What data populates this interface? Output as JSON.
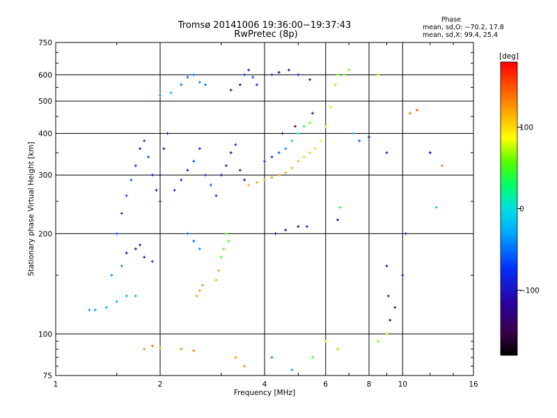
{
  "chart_data": {
    "type": "scatter",
    "title": "Tromsø 20141006 19:36:00−19:37:43",
    "subtitle": "RwPretec (8p)",
    "xlabel": "Frequency [MHz]",
    "ylabel": "Stationary phase Virtual Height [km]",
    "x_scale": "log",
    "y_scale": "log",
    "xlim": [
      1,
      16
    ],
    "ylim": [
      75,
      750
    ],
    "x_ticks": [
      1,
      2,
      4,
      6,
      8,
      10,
      16
    ],
    "x_tick_labels": [
      "1",
      "2",
      "4",
      "6",
      "8",
      "10",
      "16"
    ],
    "y_ticks": [
      75,
      100,
      200,
      300,
      400,
      500,
      600,
      750
    ],
    "y_tick_labels": [
      "75",
      "100",
      "200",
      "300",
      "400",
      "500",
      "600",
      "750"
    ],
    "grid": true,
    "stats": {
      "title": "Phase",
      "line_o": "mean, sd,O: −70.2, 17.8",
      "line_x": "mean, sd,X:  99.4, 25.4"
    },
    "colorbar": {
      "label": "[deg]",
      "min": -180,
      "max": 180,
      "ticks": [
        100,
        0,
        -100
      ],
      "tick_labels": [
        "100",
        "0",
        "−100"
      ]
    },
    "points": [
      [
        1.25,
        118,
        -45
      ],
      [
        1.3,
        118,
        -40
      ],
      [
        1.4,
        120,
        -35
      ],
      [
        1.5,
        125,
        -30
      ],
      [
        1.6,
        130,
        -35
      ],
      [
        1.7,
        130,
        -30
      ],
      [
        1.45,
        150,
        -40
      ],
      [
        1.55,
        160,
        -45
      ],
      [
        1.6,
        175,
        -110
      ],
      [
        1.7,
        180,
        -130
      ],
      [
        1.75,
        185,
        -120
      ],
      [
        1.8,
        170,
        -100
      ],
      [
        1.9,
        165,
        -90
      ],
      [
        1.5,
        200,
        -60
      ],
      [
        1.55,
        230,
        -80
      ],
      [
        1.6,
        260,
        -70
      ],
      [
        1.65,
        290,
        -50
      ],
      [
        1.7,
        320,
        -90
      ],
      [
        1.75,
        360,
        -100
      ],
      [
        1.8,
        380,
        -80
      ],
      [
        1.85,
        340,
        -60
      ],
      [
        1.9,
        300,
        -100
      ],
      [
        1.95,
        270,
        -120
      ],
      [
        2.0,
        250,
        -110
      ],
      [
        2.0,
        300,
        -130
      ],
      [
        2.05,
        360,
        -140
      ],
      [
        2.1,
        400,
        -125
      ],
      [
        2.0,
        520,
        -40
      ],
      [
        2.15,
        530,
        -30
      ],
      [
        2.3,
        560,
        -50
      ],
      [
        2.4,
        590,
        -60
      ],
      [
        2.5,
        600,
        -45
      ],
      [
        2.6,
        570,
        -40
      ],
      [
        2.7,
        560,
        -50
      ],
      [
        2.2,
        270,
        -100
      ],
      [
        2.3,
        290,
        -90
      ],
      [
        2.4,
        310,
        -95
      ],
      [
        2.5,
        330,
        -70
      ],
      [
        2.6,
        360,
        -80
      ],
      [
        2.7,
        300,
        -90
      ],
      [
        2.8,
        280,
        -60
      ],
      [
        2.9,
        260,
        -100
      ],
      [
        2.4,
        200,
        -50
      ],
      [
        2.5,
        190,
        -60
      ],
      [
        2.6,
        180,
        -40
      ],
      [
        2.55,
        130,
        120
      ],
      [
        2.6,
        135,
        125
      ],
      [
        2.65,
        140,
        130
      ],
      [
        3.0,
        300,
        -120
      ],
      [
        3.1,
        320,
        -110
      ],
      [
        3.2,
        350,
        -130
      ],
      [
        3.3,
        370,
        -90
      ],
      [
        3.4,
        310,
        -100
      ],
      [
        3.5,
        290,
        -115
      ],
      [
        3.0,
        170,
        50
      ],
      [
        3.05,
        180,
        55
      ],
      [
        3.1,
        200,
        60
      ],
      [
        3.15,
        190,
        45
      ],
      [
        2.9,
        145,
        120
      ],
      [
        2.95,
        155,
        125
      ],
      [
        3.2,
        540,
        -120
      ],
      [
        3.4,
        560,
        -110
      ],
      [
        3.5,
        600,
        -90
      ],
      [
        3.6,
        620,
        -100
      ],
      [
        3.7,
        590,
        -70
      ],
      [
        3.8,
        560,
        -80
      ],
      [
        3.6,
        280,
        120
      ],
      [
        3.8,
        285,
        125
      ],
      [
        4.0,
        290,
        130
      ],
      [
        4.2,
        295,
        128
      ],
      [
        4.4,
        300,
        125
      ],
      [
        4.6,
        305,
        120
      ],
      [
        4.8,
        315,
        118
      ],
      [
        5.0,
        330,
        115
      ],
      [
        5.2,
        340,
        110
      ],
      [
        5.4,
        350,
        105
      ],
      [
        5.6,
        360,
        100
      ],
      [
        5.8,
        380,
        95
      ],
      [
        6.0,
        420,
        90
      ],
      [
        6.2,
        480,
        75
      ],
      [
        6.4,
        560,
        65
      ],
      [
        6.5,
        600,
        60
      ],
      [
        4.0,
        330,
        -90
      ],
      [
        4.2,
        340,
        -80
      ],
      [
        4.4,
        350,
        -60
      ],
      [
        4.6,
        360,
        -40
      ],
      [
        4.8,
        380,
        -20
      ],
      [
        5.0,
        400,
        10
      ],
      [
        5.2,
        420,
        30
      ],
      [
        5.4,
        430,
        60
      ],
      [
        4.3,
        200,
        -110
      ],
      [
        4.6,
        205,
        -100
      ],
      [
        5.0,
        210,
        -120
      ],
      [
        5.3,
        210,
        -90
      ],
      [
        4.2,
        600,
        -100
      ],
      [
        4.4,
        610,
        -120
      ],
      [
        4.7,
        620,
        -110
      ],
      [
        5.0,
        600,
        -90
      ],
      [
        5.4,
        580,
        -100
      ],
      [
        4.5,
        400,
        -130
      ],
      [
        4.9,
        420,
        -140
      ],
      [
        5.5,
        460,
        -110
      ],
      [
        6.5,
        220,
        -120
      ],
      [
        6.6,
        240,
        40
      ],
      [
        6.8,
        600,
        60
      ],
      [
        7.0,
        620,
        60
      ],
      [
        7.2,
        400,
        -30
      ],
      [
        7.5,
        380,
        -60
      ],
      [
        8.0,
        390,
        -130
      ],
      [
        8.5,
        600,
        70
      ],
      [
        9.0,
        350,
        -100
      ],
      [
        9.1,
        130,
        -100
      ],
      [
        9.2,
        110,
        -110
      ],
      [
        9.5,
        120,
        -140
      ],
      [
        9.0,
        160,
        -120
      ],
      [
        10.0,
        150,
        -110
      ],
      [
        10.2,
        200,
        -90
      ],
      [
        10.5,
        460,
        140
      ],
      [
        11.0,
        470,
        150
      ],
      [
        12.0,
        350,
        -120
      ],
      [
        13.0,
        320,
        140
      ],
      [
        12.5,
        240,
        -20
      ],
      [
        1.8,
        90,
        130
      ],
      [
        1.9,
        92,
        140
      ],
      [
        2.0,
        91,
        120
      ],
      [
        2.3,
        90,
        130
      ],
      [
        2.5,
        89,
        135
      ],
      [
        3.3,
        85,
        125
      ],
      [
        3.5,
        80,
        130
      ],
      [
        4.2,
        85,
        -40
      ],
      [
        4.8,
        78,
        -30
      ],
      [
        5.5,
        85,
        40
      ],
      [
        6.0,
        95,
        80
      ],
      [
        6.5,
        90,
        110
      ],
      [
        8.5,
        95,
        60
      ],
      [
        9.0,
        100,
        70
      ]
    ]
  }
}
